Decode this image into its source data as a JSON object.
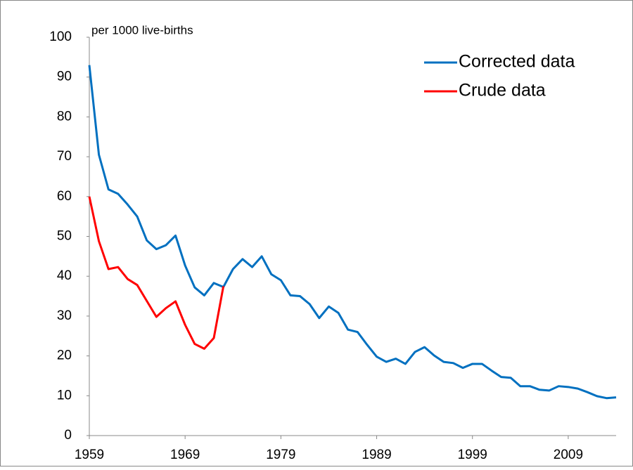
{
  "chart_data": {
    "type": "line",
    "unit_label": "per 1000 live-births",
    "x": [
      1959,
      1960,
      1961,
      1962,
      1963,
      1964,
      1965,
      1966,
      1967,
      1968,
      1969,
      1970,
      1971,
      1972,
      1973,
      1974,
      1975,
      1976,
      1977,
      1978,
      1979,
      1980,
      1981,
      1982,
      1983,
      1984,
      1985,
      1986,
      1987,
      1988,
      1989,
      1990,
      1991,
      1992,
      1993,
      1994,
      1995,
      1996,
      1997,
      1998,
      1999,
      2000,
      2001,
      2002,
      2003,
      2004,
      2005,
      2006,
      2007,
      2008,
      2009,
      2010,
      2011,
      2012,
      2013,
      2014
    ],
    "series": [
      {
        "name": "Corrected data",
        "color": "#0070c0",
        "values": [
          93,
          70.5,
          61.8,
          60.7,
          58,
          55,
          49,
          46.8,
          47.8,
          50.2,
          42.7,
          37.2,
          35.2,
          38.3,
          37.3,
          41.8,
          44.3,
          42.3,
          45,
          40.5,
          39,
          35.2,
          35,
          33,
          29.5,
          32.4,
          30.8,
          26.6,
          26,
          22.8,
          19.8,
          18.5,
          19.3,
          18,
          21,
          22.2,
          20.1,
          18.5,
          18.2,
          17,
          18,
          18,
          16.3,
          14.7,
          14.5,
          12.4,
          12.4,
          11.5,
          11.3,
          12.4,
          12.2,
          11.8,
          10.9,
          9.9,
          9.4,
          9.6
        ]
      },
      {
        "name": "Crude data",
        "color": "#ff0000",
        "values": [
          60,
          48.8,
          41.8,
          42.3,
          39.3,
          37.8,
          33.8,
          29.8,
          32,
          33.7,
          27.8,
          23,
          21.8,
          24.5,
          37.5,
          null,
          null,
          null,
          null,
          null,
          null,
          null,
          null,
          null,
          null,
          null,
          null,
          null,
          null,
          null,
          null,
          null,
          null,
          null,
          null,
          null,
          null,
          null,
          null,
          null,
          null,
          null,
          null,
          null,
          null,
          null,
          null,
          null,
          null,
          null,
          null,
          null,
          null,
          null,
          null,
          null
        ]
      }
    ],
    "xlim": [
      1959,
      2014
    ],
    "xticks": [
      1959,
      1969,
      1979,
      1989,
      1999,
      2009
    ],
    "ylim": [
      0,
      100
    ],
    "yticks": [
      0,
      10,
      20,
      30,
      40,
      50,
      60,
      70,
      80,
      90,
      100
    ],
    "legend": "upper right"
  }
}
